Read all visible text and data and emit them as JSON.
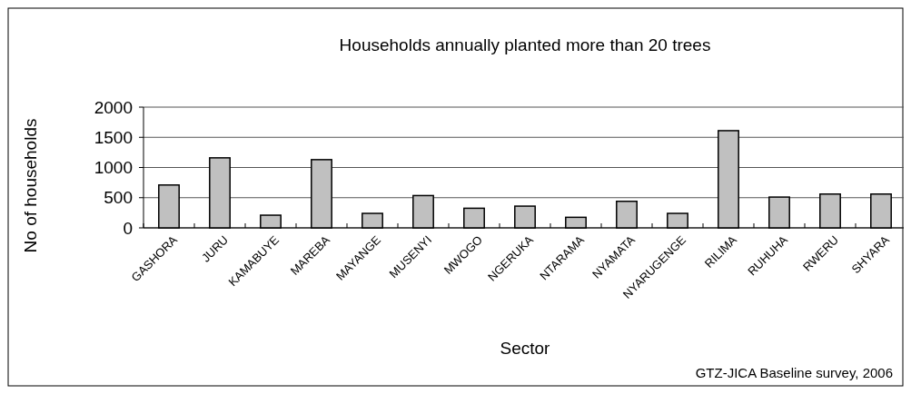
{
  "chart_data": {
    "type": "bar",
    "title": "Households annually planted more than 20 trees",
    "xlabel": "Sector",
    "ylabel": "No of households",
    "categories": [
      "GASHORA",
      "JURU",
      "KAMABUYE",
      "MAREBA",
      "MAYANGE",
      "MUSENYI",
      "MWOGO",
      "NGERUKA",
      "NTARAMA",
      "NYAMATA",
      "NYARUGENGE",
      "RILIMA",
      "RUHUHA",
      "RWERU",
      "SHYARA"
    ],
    "values": [
      710,
      1160,
      210,
      1130,
      240,
      535,
      325,
      360,
      175,
      440,
      240,
      1610,
      510,
      560,
      560
    ],
    "color": "#c0c0c0",
    "ylim": [
      0,
      2000
    ],
    "yticks": [
      0,
      500,
      1000,
      1500,
      2000
    ],
    "grid": "y",
    "annotations": [
      "GTZ-JICA Baseline survey, 2006"
    ]
  }
}
